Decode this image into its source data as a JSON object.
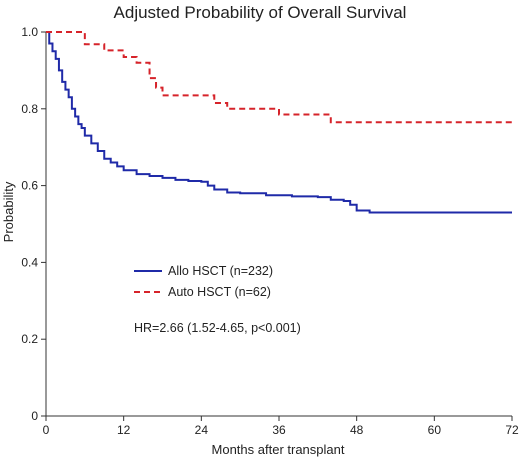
{
  "chart_data": {
    "type": "line",
    "title": "Adjusted Probability of Overall Survival",
    "xlabel": "Months after transplant",
    "ylabel": "Probability",
    "xlim": [
      0,
      72
    ],
    "ylim": [
      0,
      1.0
    ],
    "xticks": [
      0,
      12,
      24,
      36,
      48,
      60,
      72
    ],
    "yticks": [
      0,
      0.2,
      0.4,
      0.6,
      0.8,
      1.0
    ],
    "xtick_labels": [
      "0",
      "12",
      "24",
      "36",
      "48",
      "60",
      "72"
    ],
    "ytick_labels": [
      "0",
      "0.2",
      "0.4",
      "0.6",
      "0.8",
      "1.0"
    ],
    "grid": false,
    "legend_position": "center-left",
    "series": [
      {
        "name": "Allo HSCT (n=232)",
        "color": "#1f2aa8",
        "style": "solid",
        "step": true,
        "x": [
          0,
          0.5,
          1,
          1.5,
          2,
          2.5,
          3,
          3.5,
          4,
          4.5,
          5,
          5.5,
          6,
          7,
          8,
          9,
          10,
          11,
          12,
          14,
          16,
          18,
          20,
          22,
          24,
          25,
          26,
          28,
          30,
          34,
          38,
          42,
          44,
          46,
          47,
          48,
          50,
          72
        ],
        "y": [
          1.0,
          0.97,
          0.95,
          0.93,
          0.9,
          0.87,
          0.85,
          0.83,
          0.8,
          0.78,
          0.76,
          0.75,
          0.73,
          0.71,
          0.69,
          0.67,
          0.66,
          0.65,
          0.64,
          0.63,
          0.625,
          0.62,
          0.615,
          0.612,
          0.61,
          0.6,
          0.59,
          0.582,
          0.58,
          0.575,
          0.572,
          0.57,
          0.563,
          0.56,
          0.55,
          0.535,
          0.53,
          0.53
        ]
      },
      {
        "name": "Auto HSCT (n=62)",
        "color": "#d6232a",
        "style": "dashed",
        "step": true,
        "x": [
          0,
          6,
          9,
          12,
          14,
          16,
          17,
          18,
          26,
          28,
          36,
          44,
          72
        ],
        "y": [
          1.0,
          0.968,
          0.952,
          0.935,
          0.92,
          0.88,
          0.855,
          0.835,
          0.815,
          0.8,
          0.785,
          0.765,
          0.765
        ]
      }
    ],
    "annotations": [
      "HR=2.66 (1.52-4.65, p<0.001)"
    ]
  }
}
